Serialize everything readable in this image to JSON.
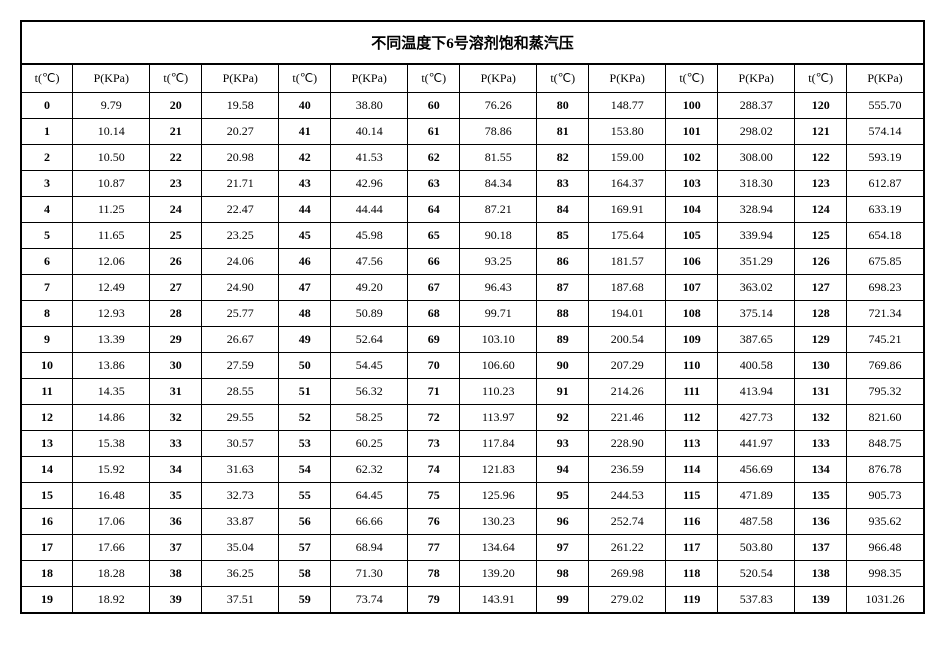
{
  "title": "不同温度下6号溶剂饱和蒸汽压",
  "headers": {
    "t": "t(℃)",
    "p": "P(KPa)"
  },
  "table": {
    "type": "table",
    "background_color": "#ffffff",
    "border_color": "#000000",
    "title_fontsize": 15,
    "cell_fontsize": 12,
    "columns_repeat": 8,
    "rows": [
      [
        [
          0,
          "9.79"
        ],
        [
          20,
          "19.58"
        ],
        [
          40,
          "38.80"
        ],
        [
          60,
          "76.26"
        ],
        [
          80,
          "148.77"
        ],
        [
          100,
          "288.37"
        ],
        [
          120,
          "555.70"
        ]
      ],
      [
        [
          1,
          "10.14"
        ],
        [
          21,
          "20.27"
        ],
        [
          41,
          "40.14"
        ],
        [
          61,
          "78.86"
        ],
        [
          81,
          "153.80"
        ],
        [
          101,
          "298.02"
        ],
        [
          121,
          "574.14"
        ]
      ],
      [
        [
          2,
          "10.50"
        ],
        [
          22,
          "20.98"
        ],
        [
          42,
          "41.53"
        ],
        [
          62,
          "81.55"
        ],
        [
          82,
          "159.00"
        ],
        [
          102,
          "308.00"
        ],
        [
          122,
          "593.19"
        ]
      ],
      [
        [
          3,
          "10.87"
        ],
        [
          23,
          "21.71"
        ],
        [
          43,
          "42.96"
        ],
        [
          63,
          "84.34"
        ],
        [
          83,
          "164.37"
        ],
        [
          103,
          "318.30"
        ],
        [
          123,
          "612.87"
        ]
      ],
      [
        [
          4,
          "11.25"
        ],
        [
          24,
          "22.47"
        ],
        [
          44,
          "44.44"
        ],
        [
          64,
          "87.21"
        ],
        [
          84,
          "169.91"
        ],
        [
          104,
          "328.94"
        ],
        [
          124,
          "633.19"
        ]
      ],
      [
        [
          5,
          "11.65"
        ],
        [
          25,
          "23.25"
        ],
        [
          45,
          "45.98"
        ],
        [
          65,
          "90.18"
        ],
        [
          85,
          "175.64"
        ],
        [
          105,
          "339.94"
        ],
        [
          125,
          "654.18"
        ]
      ],
      [
        [
          6,
          "12.06"
        ],
        [
          26,
          "24.06"
        ],
        [
          46,
          "47.56"
        ],
        [
          66,
          "93.25"
        ],
        [
          86,
          "181.57"
        ],
        [
          106,
          "351.29"
        ],
        [
          126,
          "675.85"
        ]
      ],
      [
        [
          7,
          "12.49"
        ],
        [
          27,
          "24.90"
        ],
        [
          47,
          "49.20"
        ],
        [
          67,
          "96.43"
        ],
        [
          87,
          "187.68"
        ],
        [
          107,
          "363.02"
        ],
        [
          127,
          "698.23"
        ]
      ],
      [
        [
          8,
          "12.93"
        ],
        [
          28,
          "25.77"
        ],
        [
          48,
          "50.89"
        ],
        [
          68,
          "99.71"
        ],
        [
          88,
          "194.01"
        ],
        [
          108,
          "375.14"
        ],
        [
          128,
          "721.34"
        ]
      ],
      [
        [
          9,
          "13.39"
        ],
        [
          29,
          "26.67"
        ],
        [
          49,
          "52.64"
        ],
        [
          69,
          "103.10"
        ],
        [
          89,
          "200.54"
        ],
        [
          109,
          "387.65"
        ],
        [
          129,
          "745.21"
        ]
      ],
      [
        [
          10,
          "13.86"
        ],
        [
          30,
          "27.59"
        ],
        [
          50,
          "54.45"
        ],
        [
          70,
          "106.60"
        ],
        [
          90,
          "207.29"
        ],
        [
          110,
          "400.58"
        ],
        [
          130,
          "769.86"
        ]
      ],
      [
        [
          11,
          "14.35"
        ],
        [
          31,
          "28.55"
        ],
        [
          51,
          "56.32"
        ],
        [
          71,
          "110.23"
        ],
        [
          91,
          "214.26"
        ],
        [
          111,
          "413.94"
        ],
        [
          131,
          "795.32"
        ]
      ],
      [
        [
          12,
          "14.86"
        ],
        [
          32,
          "29.55"
        ],
        [
          52,
          "58.25"
        ],
        [
          72,
          "113.97"
        ],
        [
          92,
          "221.46"
        ],
        [
          112,
          "427.73"
        ],
        [
          132,
          "821.60"
        ]
      ],
      [
        [
          13,
          "15.38"
        ],
        [
          33,
          "30.57"
        ],
        [
          53,
          "60.25"
        ],
        [
          73,
          "117.84"
        ],
        [
          93,
          "228.90"
        ],
        [
          113,
          "441.97"
        ],
        [
          133,
          "848.75"
        ]
      ],
      [
        [
          14,
          "15.92"
        ],
        [
          34,
          "31.63"
        ],
        [
          54,
          "62.32"
        ],
        [
          74,
          "121.83"
        ],
        [
          94,
          "236.59"
        ],
        [
          114,
          "456.69"
        ],
        [
          134,
          "876.78"
        ]
      ],
      [
        [
          15,
          "16.48"
        ],
        [
          35,
          "32.73"
        ],
        [
          55,
          "64.45"
        ],
        [
          75,
          "125.96"
        ],
        [
          95,
          "244.53"
        ],
        [
          115,
          "471.89"
        ],
        [
          135,
          "905.73"
        ]
      ],
      [
        [
          16,
          "17.06"
        ],
        [
          36,
          "33.87"
        ],
        [
          56,
          "66.66"
        ],
        [
          76,
          "130.23"
        ],
        [
          96,
          "252.74"
        ],
        [
          116,
          "487.58"
        ],
        [
          136,
          "935.62"
        ]
      ],
      [
        [
          17,
          "17.66"
        ],
        [
          37,
          "35.04"
        ],
        [
          57,
          "68.94"
        ],
        [
          77,
          "134.64"
        ],
        [
          97,
          "261.22"
        ],
        [
          117,
          "503.80"
        ],
        [
          137,
          "966.48"
        ]
      ],
      [
        [
          18,
          "18.28"
        ],
        [
          38,
          "36.25"
        ],
        [
          58,
          "71.30"
        ],
        [
          78,
          "139.20"
        ],
        [
          98,
          "269.98"
        ],
        [
          118,
          "520.54"
        ],
        [
          138,
          "998.35"
        ]
      ],
      [
        [
          19,
          "18.92"
        ],
        [
          39,
          "37.51"
        ],
        [
          59,
          "73.74"
        ],
        [
          79,
          "143.91"
        ],
        [
          99,
          "279.02"
        ],
        [
          119,
          "537.83"
        ],
        [
          139,
          "1031.26"
        ]
      ]
    ]
  }
}
